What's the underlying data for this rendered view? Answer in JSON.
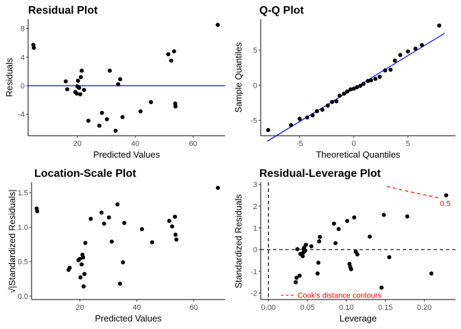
{
  "colors": {
    "point": "#000000",
    "line": "#0000ff",
    "contour": "#ff0000",
    "guide": "#000000"
  },
  "chart_data": [
    {
      "type": "scatter",
      "title": "Residual Plot",
      "xlabel": "Predicted Values",
      "ylabel": "Residuals",
      "xlim": [
        3,
        71
      ],
      "ylim": [
        -7,
        9.3
      ],
      "xticks": [
        20,
        40,
        60
      ],
      "yticks": [
        -4,
        0,
        4,
        8
      ],
      "hline": 0,
      "points": [
        [
          4.8,
          5.7
        ],
        [
          5.0,
          5.3
        ],
        [
          16.0,
          0.6
        ],
        [
          16.5,
          -0.5
        ],
        [
          19.3,
          -0.9
        ],
        [
          19.8,
          -1.1
        ],
        [
          20.0,
          -0.1
        ],
        [
          20.2,
          0.7
        ],
        [
          20.6,
          -0.3
        ],
        [
          21.0,
          -1.2
        ],
        [
          21.2,
          1.2
        ],
        [
          21.5,
          2.1
        ],
        [
          22.3,
          -0.6
        ],
        [
          23.8,
          -4.9
        ],
        [
          27.6,
          -5.6
        ],
        [
          28.5,
          -3.8
        ],
        [
          30.2,
          -4.7
        ],
        [
          31.2,
          2.1
        ],
        [
          33.2,
          -6.3
        ],
        [
          34.1,
          0.2
        ],
        [
          34.8,
          0.9
        ],
        [
          35.6,
          -4.4
        ],
        [
          41.8,
          -3.6
        ],
        [
          45.4,
          -2.3
        ],
        [
          51.4,
          4.4
        ],
        [
          52.4,
          3.5
        ],
        [
          53.4,
          4.8
        ],
        [
          53.8,
          -2.5
        ],
        [
          53.9,
          -2.9
        ],
        [
          68.5,
          8.5
        ]
      ]
    },
    {
      "type": "scatter",
      "title": "Q-Q Plot",
      "xlabel": "Theoretical Quantiles",
      "ylabel": "Sample Quantiles",
      "xlim": [
        -8.6,
        9.4
      ],
      "ylim": [
        -7.2,
        9.4
      ],
      "xticks": [
        -5,
        0,
        5
      ],
      "yticks": [
        -5,
        0,
        5
      ],
      "reference_line": [
        [
          -8.0,
          -8.0
        ],
        [
          8.4,
          7.4
        ]
      ],
      "points": [
        [
          -7.9,
          -6.4
        ],
        [
          -5.8,
          -5.7
        ],
        [
          -5.0,
          -4.8
        ],
        [
          -4.3,
          -4.6
        ],
        [
          -3.8,
          -4.3
        ],
        [
          -3.4,
          -3.7
        ],
        [
          -2.9,
          -3.5
        ],
        [
          -2.4,
          -2.9
        ],
        [
          -2.0,
          -2.4
        ],
        [
          -1.6,
          -2.3
        ],
        [
          -1.3,
          -1.5
        ],
        [
          -0.9,
          -1.2
        ],
        [
          -0.6,
          -0.9
        ],
        [
          -0.3,
          -0.6
        ],
        [
          0.0,
          -0.5
        ],
        [
          0.3,
          -0.3
        ],
        [
          0.6,
          -0.1
        ],
        [
          0.9,
          0.2
        ],
        [
          1.3,
          0.6
        ],
        [
          1.6,
          0.7
        ],
        [
          2.0,
          0.9
        ],
        [
          2.4,
          1.2
        ],
        [
          2.9,
          2.1
        ],
        [
          3.4,
          2.2
        ],
        [
          3.8,
          3.5
        ],
        [
          4.3,
          4.3
        ],
        [
          5.0,
          4.8
        ],
        [
          5.7,
          5.2
        ],
        [
          6.3,
          5.7
        ],
        [
          7.9,
          8.5
        ]
      ]
    },
    {
      "type": "scatter",
      "title": "Location-Scale Plot",
      "xlabel": "Predicted Values",
      "ylabel": "√|Standardized Residuals|",
      "xlim": [
        3,
        71
      ],
      "ylim": [
        -0.05,
        1.65
      ],
      "xticks": [
        20,
        40,
        60
      ],
      "yticks": [
        0.0,
        0.5,
        1.0,
        1.5
      ],
      "ytick_labels": [
        "0.0",
        "0.5",
        "1.0",
        "1.5"
      ],
      "points": [
        [
          4.8,
          1.27
        ],
        [
          5.0,
          1.23
        ],
        [
          16.0,
          0.38
        ],
        [
          16.4,
          0.41
        ],
        [
          19.5,
          0.52
        ],
        [
          19.9,
          0.54
        ],
        [
          20.2,
          0.27
        ],
        [
          20.6,
          0.46
        ],
        [
          20.9,
          0.6
        ],
        [
          21.1,
          0.56
        ],
        [
          21.3,
          0.14
        ],
        [
          21.6,
          0.32
        ],
        [
          21.9,
          0.77
        ],
        [
          23.8,
          1.12
        ],
        [
          27.6,
          1.21
        ],
        [
          28.5,
          1.05
        ],
        [
          30.2,
          1.14
        ],
        [
          31.2,
          0.79
        ],
        [
          33.2,
          1.33
        ],
        [
          34.1,
          0.18
        ],
        [
          35.1,
          0.49
        ],
        [
          35.6,
          1.06
        ],
        [
          41.8,
          0.97
        ],
        [
          45.4,
          0.78
        ],
        [
          51.4,
          1.09
        ],
        [
          52.4,
          1.01
        ],
        [
          53.4,
          1.15
        ],
        [
          53.6,
          0.89
        ],
        [
          53.9,
          0.82
        ],
        [
          68.5,
          1.57
        ]
      ]
    },
    {
      "type": "scatter",
      "title": "Residual-Leverage Plot",
      "xlabel": "Leverage",
      "ylabel": "Standardized Residuals",
      "xlim": [
        -0.01,
        0.24
      ],
      "ylim": [
        -2.3,
        3.1
      ],
      "xticks": [
        0.0,
        0.05,
        0.1,
        0.15,
        0.2
      ],
      "xtick_labels": [
        "0.00",
        "0.05",
        "0.10",
        "0.15",
        "0.20"
      ],
      "yticks": [
        -2,
        -1,
        0,
        1,
        2,
        3
      ],
      "hline": 0,
      "vline": 0,
      "contour_label": "0.5",
      "contour_curve": [
        [
          0.152,
          2.92
        ],
        [
          0.17,
          2.76
        ],
        [
          0.19,
          2.6
        ],
        [
          0.207,
          2.47
        ],
        [
          0.222,
          2.36
        ]
      ],
      "legend_label": "Cook's distance contours",
      "points": [
        [
          0.035,
          -1.5
        ],
        [
          0.036,
          -1.3
        ],
        [
          0.037,
          0.02
        ],
        [
          0.04,
          -1.2
        ],
        [
          0.041,
          -0.2
        ],
        [
          0.044,
          -0.3
        ],
        [
          0.045,
          -0.12
        ],
        [
          0.045,
          0.03
        ],
        [
          0.046,
          0.1
        ],
        [
          0.047,
          -0.05
        ],
        [
          0.048,
          0.22
        ],
        [
          0.055,
          0.15
        ],
        [
          0.064,
          -0.6
        ],
        [
          0.063,
          -1.1
        ],
        [
          0.065,
          0.38
        ],
        [
          0.066,
          0.58
        ],
        [
          0.084,
          1.2
        ],
        [
          0.086,
          0.3
        ],
        [
          0.09,
          0.95
        ],
        [
          0.101,
          1.32
        ],
        [
          0.104,
          -0.66
        ],
        [
          0.105,
          -0.8
        ],
        [
          0.106,
          -0.9
        ],
        [
          0.11,
          1.48
        ],
        [
          0.112,
          -0.1
        ],
        [
          0.114,
          -0.22
        ],
        [
          0.13,
          0.6
        ],
        [
          0.145,
          -1.75
        ],
        [
          0.148,
          1.6
        ],
        [
          0.155,
          -0.35
        ],
        [
          0.178,
          1.53
        ],
        [
          0.209,
          -1.1
        ],
        [
          0.228,
          2.5
        ]
      ]
    }
  ]
}
